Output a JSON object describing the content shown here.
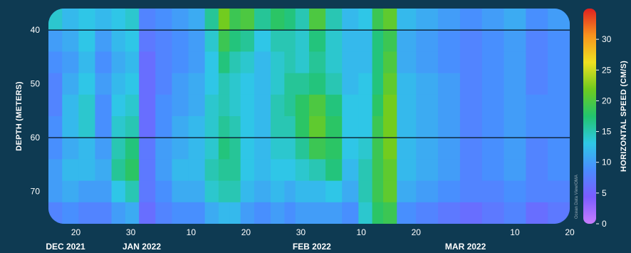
{
  "chart_data": {
    "type": "heatmap",
    "title": "",
    "ylabel": "DEPTH (METERS)",
    "colorbar_label": "HORIZONTAL SPEED (CM/S)",
    "credit": "Ocean Data View/OMA",
    "y_reversed": true,
    "ylim": [
      36,
      76
    ],
    "y_ticks": [
      40,
      50,
      60,
      70
    ],
    "y_reference_lines": [
      40,
      60
    ],
    "x_range": [
      "2021-12-15",
      "2022-03-20"
    ],
    "x_ticks": [
      {
        "date": "2021-12-20",
        "label": "20"
      },
      {
        "date": "2021-12-30",
        "label": "30"
      },
      {
        "date": "2022-01-10",
        "label": "10"
      },
      {
        "date": "2022-01-20",
        "label": "20"
      },
      {
        "date": "2022-01-30",
        "label": "30"
      },
      {
        "date": "2022-02-10",
        "label": "10"
      },
      {
        "date": "2022-02-20",
        "label": "20"
      },
      {
        "date": "2022-03-10",
        "label": "10"
      },
      {
        "date": "2022-03-20",
        "label": "20"
      }
    ],
    "month_labels": [
      {
        "date": "2021-12-01",
        "label": "DEC 2021"
      },
      {
        "date": "2022-01-01",
        "label": "JAN 2022"
      },
      {
        "date": "2022-02-01",
        "label": "FEB 2022"
      },
      {
        "date": "2022-03-01",
        "label": "MAR 2022"
      }
    ],
    "color_range": [
      0,
      35
    ],
    "colorbar_ticks": [
      0,
      5,
      10,
      15,
      20,
      25,
      30
    ],
    "colorscale": [
      "#c77dff",
      "#7a5cff",
      "#4a8cff",
      "#2ec8e6",
      "#22c46e",
      "#6ecb1f",
      "#f0e020",
      "#f7931e",
      "#e02020"
    ],
    "depths": [
      38,
      42,
      46,
      50,
      54,
      58,
      62,
      66,
      70,
      74
    ],
    "columns": [
      {
        "date": "2021-12-16",
        "speeds": [
          14,
          10,
          9,
          8,
          8,
          9,
          9,
          10,
          10,
          8
        ]
      },
      {
        "date": "2021-12-19",
        "speeds": [
          12,
          11,
          10,
          11,
          12,
          12,
          11,
          12,
          11,
          9
        ]
      },
      {
        "date": "2021-12-22",
        "speeds": [
          13,
          13,
          12,
          13,
          14,
          14,
          12,
          12,
          10,
          8
        ]
      },
      {
        "date": "2021-12-25",
        "speeds": [
          12,
          10,
          9,
          10,
          9,
          9,
          10,
          11,
          10,
          8
        ]
      },
      {
        "date": "2021-12-28",
        "speeds": [
          13,
          12,
          11,
          12,
          13,
          14,
          15,
          16,
          13,
          10
        ]
      },
      {
        "date": "2021-12-30",
        "speeds": [
          14,
          13,
          12,
          13,
          14,
          15,
          17,
          18,
          15,
          11
        ]
      },
      {
        "date": "2022-01-02",
        "speeds": [
          8,
          7,
          6,
          6,
          6,
          6,
          7,
          7,
          7,
          6
        ]
      },
      {
        "date": "2022-01-05",
        "speeds": [
          9,
          8,
          8,
          8,
          9,
          9,
          10,
          10,
          9,
          8
        ]
      },
      {
        "date": "2022-01-08",
        "speeds": [
          10,
          9,
          9,
          10,
          10,
          11,
          11,
          12,
          11,
          9
        ]
      },
      {
        "date": "2022-01-11",
        "speeds": [
          11,
          10,
          10,
          11,
          11,
          12,
          12,
          12,
          11,
          9
        ]
      },
      {
        "date": "2022-01-14",
        "speeds": [
          16,
          14,
          13,
          13,
          14,
          14,
          14,
          15,
          14,
          11
        ]
      },
      {
        "date": "2022-01-16",
        "speeds": [
          22,
          19,
          17,
          15,
          15,
          16,
          17,
          16,
          15,
          12
        ]
      },
      {
        "date": "2022-01-18",
        "speeds": [
          19,
          17,
          15,
          14,
          14,
          15,
          16,
          16,
          15,
          12
        ]
      },
      {
        "date": "2022-01-20",
        "speeds": [
          20,
          16,
          14,
          13,
          13,
          13,
          13,
          13,
          12,
          10
        ]
      },
      {
        "date": "2022-01-23",
        "speeds": [
          16,
          13,
          12,
          12,
          12,
          12,
          12,
          12,
          11,
          9
        ]
      },
      {
        "date": "2022-01-26",
        "speeds": [
          18,
          15,
          14,
          14,
          15,
          15,
          14,
          13,
          12,
          10
        ]
      },
      {
        "date": "2022-01-28",
        "speeds": [
          17,
          15,
          15,
          16,
          16,
          15,
          14,
          13,
          11,
          9
        ]
      },
      {
        "date": "2022-01-30",
        "speeds": [
          15,
          14,
          14,
          16,
          18,
          18,
          16,
          14,
          12,
          10
        ]
      },
      {
        "date": "2022-02-02",
        "speeds": [
          20,
          17,
          16,
          17,
          20,
          21,
          19,
          15,
          12,
          10
        ]
      },
      {
        "date": "2022-02-05",
        "speeds": [
          15,
          14,
          14,
          15,
          17,
          18,
          18,
          17,
          13,
          10
        ]
      },
      {
        "date": "2022-02-08",
        "speeds": [
          12,
          12,
          12,
          12,
          13,
          13,
          13,
          12,
          11,
          9
        ]
      },
      {
        "date": "2022-02-11",
        "speeds": [
          13,
          12,
          12,
          13,
          13,
          13,
          14,
          15,
          15,
          14
        ]
      },
      {
        "date": "2022-02-13",
        "speeds": [
          19,
          17,
          17,
          17,
          18,
          19,
          19,
          19,
          19,
          18
        ]
      },
      {
        "date": "2022-02-15",
        "speeds": [
          21,
          19,
          20,
          21,
          22,
          22,
          22,
          21,
          21,
          19
        ]
      },
      {
        "date": "2022-02-18",
        "speeds": [
          12,
          11,
          11,
          12,
          12,
          12,
          12,
          12,
          11,
          9
        ]
      },
      {
        "date": "2022-02-22",
        "speeds": [
          11,
          10,
          10,
          11,
          11,
          11,
          11,
          11,
          10,
          8
        ]
      },
      {
        "date": "2022-02-26",
        "speeds": [
          10,
          9,
          9,
          10,
          10,
          10,
          10,
          10,
          9,
          7
        ]
      },
      {
        "date": "2022-03-02",
        "speeds": [
          9,
          8,
          8,
          8,
          8,
          8,
          8,
          8,
          8,
          6
        ]
      },
      {
        "date": "2022-03-06",
        "speeds": [
          10,
          9,
          9,
          9,
          9,
          9,
          9,
          9,
          8,
          7
        ]
      },
      {
        "date": "2022-03-10",
        "speeds": [
          11,
          10,
          10,
          10,
          10,
          10,
          10,
          10,
          9,
          8
        ]
      },
      {
        "date": "2022-03-14",
        "speeds": [
          9,
          8,
          8,
          8,
          9,
          9,
          8,
          8,
          8,
          6
        ]
      },
      {
        "date": "2022-03-18",
        "speeds": [
          10,
          9,
          9,
          9,
          9,
          9,
          9,
          9,
          8,
          7
        ]
      }
    ]
  }
}
